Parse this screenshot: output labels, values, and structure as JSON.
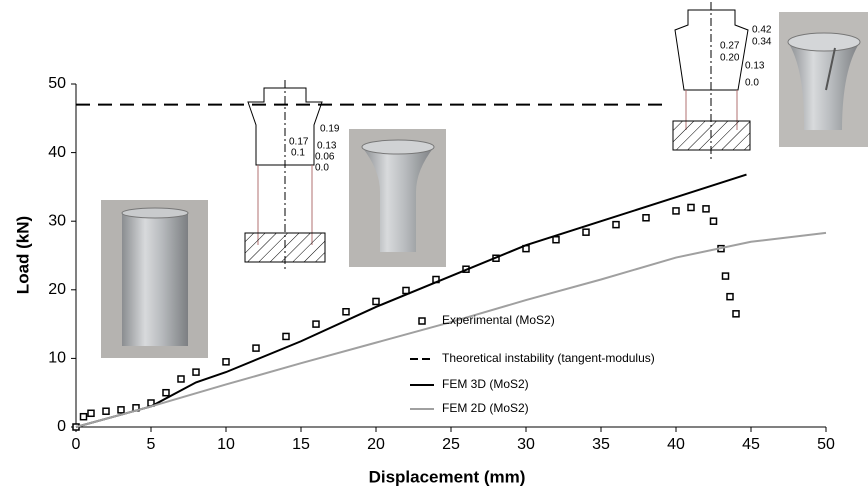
{
  "chart_data": {
    "type": "line",
    "x_label": "Displacement (mm)",
    "y_label": "Load (kN)",
    "xlim": [
      0,
      50
    ],
    "ylim": [
      0,
      50
    ],
    "xticks": [
      0,
      5,
      10,
      15,
      20,
      25,
      30,
      35,
      40,
      45,
      50
    ],
    "yticks": [
      0,
      10,
      20,
      30,
      40,
      50
    ],
    "series": [
      {
        "name": "Experimental (MoS2)",
        "color": "#000000",
        "style": "marker",
        "x": [
          0,
          0.5,
          1,
          2,
          3,
          4,
          5,
          6,
          7,
          8,
          10,
          12,
          14,
          16,
          18,
          20,
          22,
          24,
          26,
          28,
          30,
          32,
          34,
          36,
          38,
          40,
          41,
          42,
          42.5,
          43,
          43.3,
          43.6,
          44
        ],
        "values": [
          0,
          1.5,
          2,
          2.3,
          2.5,
          2.8,
          3.5,
          5,
          7,
          8,
          9.5,
          11.5,
          13.2,
          15,
          16.8,
          18.3,
          19.9,
          21.5,
          23,
          24.6,
          26,
          27.3,
          28.4,
          29.5,
          30.5,
          31.5,
          32,
          31.8,
          30,
          26,
          22,
          19,
          16.5
        ]
      },
      {
        "name": "Theoretical instability (tangent-modulus)",
        "color": "#000000",
        "style": "dashed",
        "x": [
          0,
          39.5
        ],
        "values": [
          47,
          47
        ]
      },
      {
        "name": "FEM 3D (MoS2)",
        "color": "#000000",
        "style": "solid",
        "x": [
          0,
          5,
          8,
          10,
          15,
          20,
          25,
          30,
          35,
          40,
          44.7
        ],
        "values": [
          0,
          3,
          6.5,
          8,
          12.5,
          17.5,
          22,
          26.5,
          30,
          33.5,
          36.8
        ]
      },
      {
        "name": "FEM 2D (MoS2)",
        "color": "#a0a0a0",
        "style": "solid",
        "x": [
          0,
          5,
          10,
          15,
          20,
          25,
          30,
          35,
          40,
          45,
          50
        ],
        "values": [
          0,
          3,
          6.2,
          9.3,
          12.3,
          15.3,
          18.5,
          21.5,
          24.7,
          27,
          28.3
        ]
      }
    ],
    "annotations": {
      "left_diagram": [
        "0.19",
        "0.17",
        "0.13",
        "0.1",
        "0.06",
        "0.0"
      ],
      "right_diagram": [
        "0.42",
        "0.34",
        "0.27",
        "0.20",
        "0.13",
        "0.0"
      ]
    }
  }
}
